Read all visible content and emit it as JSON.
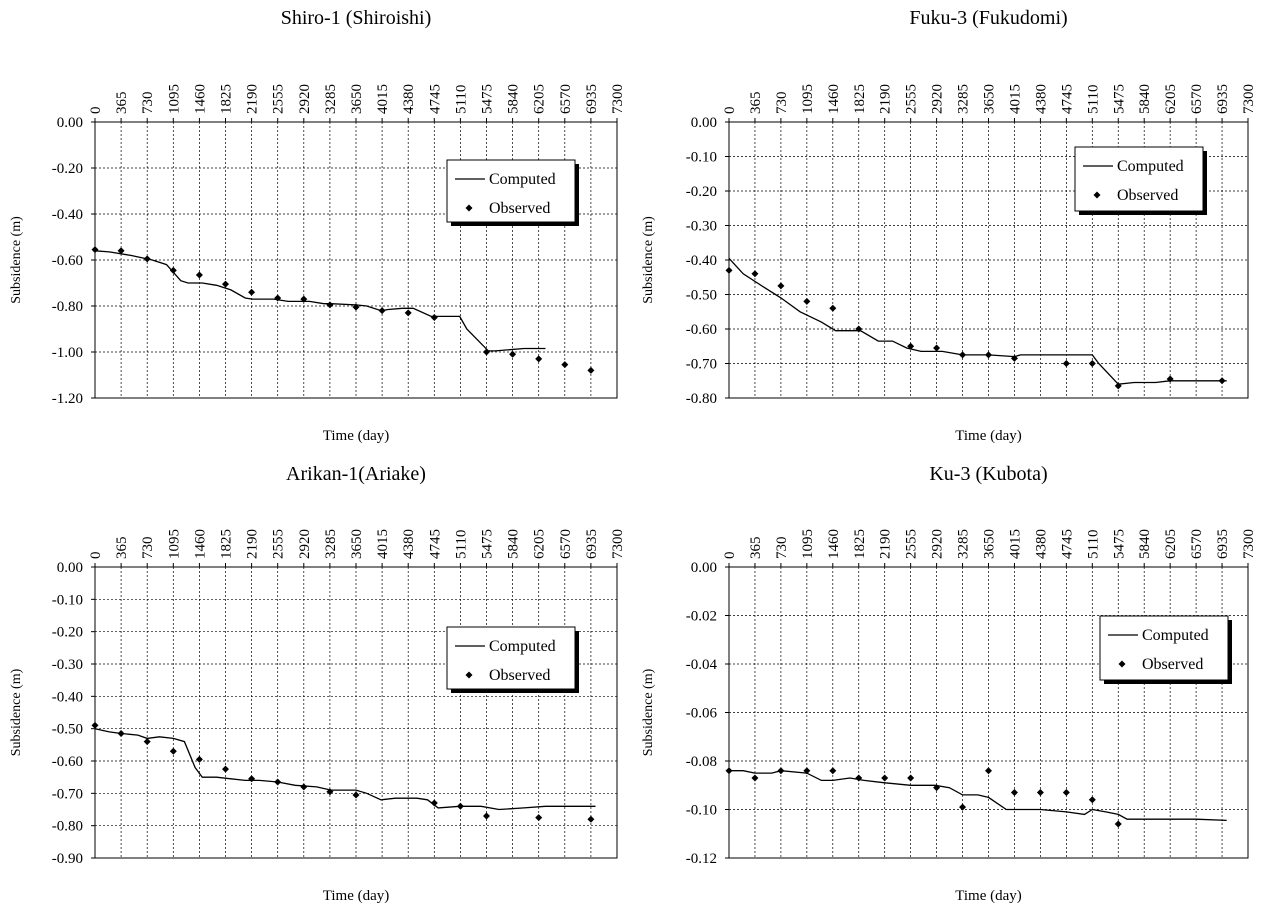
{
  "chart_data": [
    {
      "type": "line",
      "title": "Shiro-1 (Shiroishi)",
      "xlabel": "Time (day)",
      "ylabel": "Subsidence (m)",
      "xlim": [
        0,
        7300
      ],
      "ylim": [
        -1.2,
        0.0
      ],
      "x_ticks": [
        0,
        365,
        730,
        1095,
        1460,
        1825,
        2190,
        2555,
        2920,
        3285,
        3650,
        4015,
        4380,
        4745,
        5110,
        5475,
        5840,
        6205,
        6570,
        6935,
        7300
      ],
      "y_ticks": [
        "0.00",
        "-0.20",
        "-0.40",
        "-0.60",
        "-0.80",
        "-1.00",
        "-1.20"
      ],
      "x_axis_position": "top",
      "grid": true,
      "legend_position": "top-right",
      "series": [
        {
          "name": "Computed",
          "style": "line",
          "x": [
            0,
            200,
            500,
            800,
            1000,
            1200,
            1300,
            1500,
            1700,
            1900,
            2100,
            2200,
            2500,
            2700,
            3000,
            3200,
            3300,
            3650,
            3800,
            4000,
            4100,
            4300,
            4450,
            4700,
            4800,
            5100,
            5200,
            5500,
            5600,
            5800,
            6000,
            6300
          ],
          "y": [
            -0.56,
            -0.565,
            -0.58,
            -0.6,
            -0.62,
            -0.69,
            -0.7,
            -0.7,
            -0.71,
            -0.73,
            -0.765,
            -0.77,
            -0.77,
            -0.78,
            -0.78,
            -0.79,
            -0.79,
            -0.795,
            -0.8,
            -0.82,
            -0.815,
            -0.81,
            -0.81,
            -0.845,
            -0.845,
            -0.845,
            -0.9,
            -0.995,
            -0.995,
            -0.99,
            -0.985,
            -0.985
          ]
        },
        {
          "name": "Observed",
          "style": "marker",
          "x": [
            0,
            365,
            730,
            1095,
            1460,
            1825,
            2190,
            2555,
            2920,
            3285,
            3650,
            4015,
            4380,
            4745,
            5475,
            5840,
            6205,
            6570,
            6935
          ],
          "y": [
            -0.555,
            -0.56,
            -0.595,
            -0.645,
            -0.665,
            -0.705,
            -0.74,
            -0.765,
            -0.77,
            -0.795,
            -0.805,
            -0.82,
            -0.83,
            -0.85,
            -1.0,
            -1.01,
            -1.03,
            -1.055,
            -1.08
          ]
        }
      ]
    },
    {
      "type": "line",
      "title": "Fuku-3 (Fukudomi)",
      "xlabel": "Time (day)",
      "ylabel": "Subsidence (m)",
      "xlim": [
        0,
        7300
      ],
      "ylim": [
        -0.8,
        0.0
      ],
      "x_ticks": [
        0,
        365,
        730,
        1095,
        1460,
        1825,
        2190,
        2555,
        2920,
        3285,
        3650,
        4015,
        4380,
        4745,
        5110,
        5475,
        5840,
        6205,
        6570,
        6935,
        7300
      ],
      "y_ticks": [
        "0.00",
        "-0.10",
        "-0.20",
        "-0.30",
        "-0.40",
        "-0.50",
        "-0.60",
        "-0.70",
        "-0.80"
      ],
      "x_axis_position": "top",
      "grid": true,
      "legend_position": "top-right",
      "series": [
        {
          "name": "Computed",
          "style": "line",
          "x": [
            0,
            200,
            500,
            730,
            1000,
            1300,
            1500,
            1700,
            1850,
            2100,
            2300,
            2500,
            2700,
            3000,
            3285,
            3650,
            4015,
            4100,
            4380,
            5110,
            5200,
            5475,
            5700,
            6000,
            6200,
            6500,
            7000
          ],
          "y": [
            -0.395,
            -0.44,
            -0.48,
            -0.51,
            -0.55,
            -0.58,
            -0.605,
            -0.605,
            -0.605,
            -0.635,
            -0.635,
            -0.655,
            -0.665,
            -0.665,
            -0.675,
            -0.675,
            -0.68,
            -0.675,
            -0.675,
            -0.675,
            -0.7,
            -0.76,
            -0.755,
            -0.755,
            -0.75,
            -0.75,
            -0.75
          ]
        },
        {
          "name": "Observed",
          "style": "marker",
          "x": [
            0,
            365,
            730,
            1095,
            1460,
            1825,
            2555,
            2920,
            3285,
            3650,
            4015,
            4745,
            5110,
            5475,
            6205,
            6935
          ],
          "y": [
            -0.43,
            -0.44,
            -0.475,
            -0.52,
            -0.54,
            -0.6,
            -0.65,
            -0.655,
            -0.675,
            -0.675,
            -0.685,
            -0.7,
            -0.7,
            -0.765,
            -0.745,
            -0.75
          ]
        }
      ]
    },
    {
      "type": "line",
      "title": "Arikan-1(Ariake)",
      "xlabel": "Time (day)",
      "ylabel": "Subsidence (m)",
      "xlim": [
        0,
        7300
      ],
      "ylim": [
        -0.9,
        0.0
      ],
      "x_ticks": [
        0,
        365,
        730,
        1095,
        1460,
        1825,
        2190,
        2555,
        2920,
        3285,
        3650,
        4015,
        4380,
        4745,
        5110,
        5475,
        5840,
        6205,
        6570,
        6935,
        7300
      ],
      "y_ticks": [
        "0.00",
        "-0.10",
        "-0.20",
        "-0.30",
        "-0.40",
        "-0.50",
        "-0.60",
        "-0.70",
        "-0.80",
        "-0.90"
      ],
      "x_axis_position": "top",
      "grid": true,
      "legend_position": "top-right",
      "series": [
        {
          "name": "Computed",
          "style": "line",
          "x": [
            0,
            200,
            365,
            600,
            730,
            900,
            1095,
            1250,
            1400,
            1500,
            1700,
            1900,
            2100,
            2300,
            2555,
            2800,
            3100,
            3300,
            3650,
            3800,
            4000,
            4200,
            4500,
            4650,
            4800,
            5100,
            5400,
            5650,
            6000,
            6300,
            6700,
            7000
          ],
          "y": [
            -0.5,
            -0.51,
            -0.515,
            -0.52,
            -0.53,
            -0.525,
            -0.53,
            -0.54,
            -0.62,
            -0.65,
            -0.65,
            -0.655,
            -0.66,
            -0.66,
            -0.665,
            -0.675,
            -0.68,
            -0.69,
            -0.69,
            -0.7,
            -0.72,
            -0.715,
            -0.715,
            -0.72,
            -0.745,
            -0.74,
            -0.74,
            -0.75,
            -0.745,
            -0.74,
            -0.74,
            -0.74
          ]
        },
        {
          "name": "Observed",
          "style": "marker",
          "x": [
            0,
            365,
            730,
            1095,
            1460,
            1825,
            2190,
            2555,
            2920,
            3285,
            3650,
            4745,
            5110,
            5475,
            6205,
            6935
          ],
          "y": [
            -0.49,
            -0.515,
            -0.54,
            -0.57,
            -0.595,
            -0.625,
            -0.655,
            -0.665,
            -0.68,
            -0.695,
            -0.705,
            -0.73,
            -0.74,
            -0.77,
            -0.775,
            -0.78
          ]
        }
      ]
    },
    {
      "type": "line",
      "title": "Ku-3 (Kubota)",
      "xlabel": "Time (day)",
      "ylabel": "Subsidence (m)",
      "xlim": [
        0,
        7300
      ],
      "ylim": [
        -0.12,
        0.0
      ],
      "x_ticks": [
        0,
        365,
        730,
        1095,
        1460,
        1825,
        2190,
        2555,
        2920,
        3285,
        3650,
        4015,
        4380,
        4745,
        5110,
        5475,
        5840,
        6205,
        6570,
        6935,
        7300
      ],
      "y_ticks": [
        "0.00",
        "-0.02",
        "-0.04",
        "-0.06",
        "-0.08",
        "-0.10",
        "-0.12"
      ],
      "x_axis_position": "top",
      "grid": true,
      "legend_position": "top-right",
      "series": [
        {
          "name": "Computed",
          "style": "line",
          "x": [
            0,
            200,
            365,
            600,
            730,
            1095,
            1300,
            1460,
            1700,
            1900,
            2190,
            2555,
            2900,
            3100,
            3285,
            3500,
            3650,
            3900,
            4015,
            4380,
            4745,
            5000,
            5110,
            5300,
            5475,
            5600,
            5840,
            6205,
            6570,
            7000
          ],
          "y": [
            -0.084,
            -0.084,
            -0.085,
            -0.085,
            -0.084,
            -0.085,
            -0.088,
            -0.088,
            -0.087,
            -0.088,
            -0.089,
            -0.09,
            -0.09,
            -0.091,
            -0.094,
            -0.094,
            -0.095,
            -0.1,
            -0.1,
            -0.1,
            -0.101,
            -0.102,
            -0.1,
            -0.101,
            -0.102,
            -0.104,
            -0.104,
            -0.104,
            -0.104,
            -0.1045
          ]
        },
        {
          "name": "Observed",
          "style": "marker",
          "x": [
            0,
            365,
            730,
            1095,
            1460,
            1825,
            2190,
            2555,
            2920,
            3285,
            3650,
            4015,
            4380,
            4745,
            5110,
            5475
          ],
          "y": [
            -0.084,
            -0.087,
            -0.084,
            -0.084,
            -0.084,
            -0.087,
            -0.087,
            -0.087,
            -0.091,
            -0.099,
            -0.084,
            -0.093,
            -0.093,
            -0.093,
            -0.096,
            -0.106
          ]
        }
      ]
    }
  ]
}
